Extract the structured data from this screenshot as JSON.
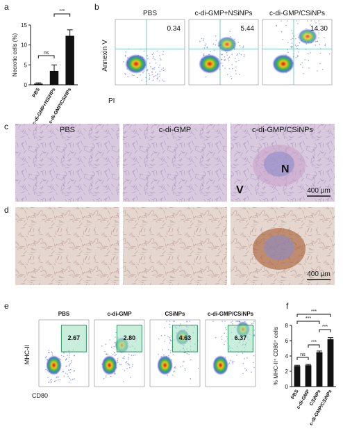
{
  "panel_labels": [
    "a",
    "b",
    "c",
    "d",
    "e",
    "f"
  ],
  "chart_data": [
    {
      "type": "bar",
      "y_label": "Necrotic cells (%)",
      "categories": [
        "PBS",
        "c-di-GMP+NSiNPs",
        "c-di-GMP/CSiNPs"
      ],
      "values": [
        0.3,
        3.5,
        12.3
      ],
      "errors": [
        0.2,
        1.5,
        1.5
      ],
      "color": "#111111",
      "ylim": [
        0,
        15
      ],
      "yticks": [
        0,
        5,
        10,
        15
      ],
      "annotations": [
        "ns",
        "***"
      ]
    },
    {
      "type": "bar",
      "y_label": "% MHC-II⁺ CD80⁺ cells",
      "categories": [
        "PBS",
        "c-di-GMP",
        "CSiNPs",
        "c-di-GMP/CSiNPs"
      ],
      "values": [
        2.7,
        2.8,
        4.5,
        6.2
      ],
      "errors": [
        0.1,
        0.1,
        0.15,
        0.2
      ],
      "color": "#111111",
      "ylim": [
        0,
        8
      ],
      "yticks": [
        0,
        2,
        4,
        6,
        8
      ],
      "annotations": [
        "***",
        "***",
        "***",
        "***",
        "ns"
      ]
    }
  ],
  "flow_b": {
    "y_label": "Annexin V",
    "x_label": "PI",
    "plots": [
      {
        "title": "PBS",
        "value": "0.34"
      },
      {
        "title": "c-di-GMP+NSiNPs",
        "value": "5.44"
      },
      {
        "title": "c-di-GMP/CSiNPs",
        "value": "14.30"
      }
    ]
  },
  "histology_c": {
    "titles": [
      "PBS",
      "c-di-GMP",
      "c-di-GMP/CSiNPs"
    ],
    "markers": [
      "N",
      "V"
    ],
    "scale_bar": "400 µm"
  },
  "histology_d": {
    "scale_bar": "400 µm"
  },
  "flow_e": {
    "y_label": "MHC-II",
    "x_label": "CD80",
    "plots": [
      {
        "title": "PBS",
        "value": "2.67"
      },
      {
        "title": "c-di-GMP",
        "value": "2.80"
      },
      {
        "title": "CSiNPs",
        "value": "4.63"
      },
      {
        "title": "c-di-GMP/CSiNPs",
        "value": "6.37"
      }
    ]
  }
}
